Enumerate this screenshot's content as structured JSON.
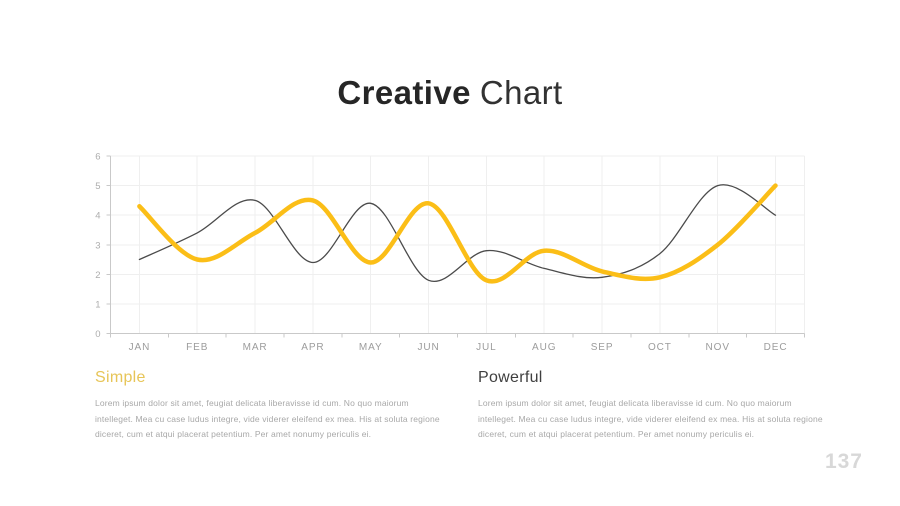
{
  "slide": {
    "title_bold": "Creative",
    "title_light": "Chart",
    "page_number": "137"
  },
  "chart_data": {
    "type": "line",
    "title": "Creative Chart",
    "categories": [
      "JAN",
      "FEB",
      "MAR",
      "APR",
      "MAY",
      "JUN",
      "JUL",
      "AUG",
      "SEP",
      "OCT",
      "NOV",
      "DEC"
    ],
    "ylim": [
      0,
      6
    ],
    "yticks": [
      0,
      1,
      2,
      3,
      4,
      5,
      6
    ],
    "grid": true,
    "legend": "none",
    "series": [
      {
        "name": "Powerful",
        "color": "#4B4B4B",
        "thickness": 1.3,
        "values": [
          2.5,
          3.4,
          4.5,
          2.4,
          4.4,
          1.8,
          2.8,
          2.2,
          1.9,
          2.7,
          5.0,
          4.0
        ]
      },
      {
        "name": "Simple",
        "color": "#FBBE17",
        "thickness": 4.5,
        "values": [
          4.3,
          2.5,
          3.4,
          4.5,
          2.4,
          4.4,
          1.8,
          2.8,
          2.1,
          1.9,
          3.0,
          5.0
        ]
      }
    ]
  },
  "sections": [
    {
      "heading": "Simple",
      "heading_color": "#E7C558",
      "body": "Lorem ipsum dolor sit amet, feugiat delicata liberavisse id cum. No quo maiorum intelleget. Mea cu case ludus integre, vide viderer eleifend ex mea. His at soluta regione diceret, cum et atqui placerat petentium. Per amet nonumy periculis ei."
    },
    {
      "heading": "Powerful",
      "heading_color": "#3F3F3F",
      "body": "Lorem ipsum dolor sit amet, feugiat delicata liberavisse id cum. No quo maiorum intelleget. Mea cu case ludus integre, vide viderer eleifend ex mea. His at soluta regione diceret, cum et atqui placerat petentium. Per amet nonumy periculis ei."
    }
  ]
}
